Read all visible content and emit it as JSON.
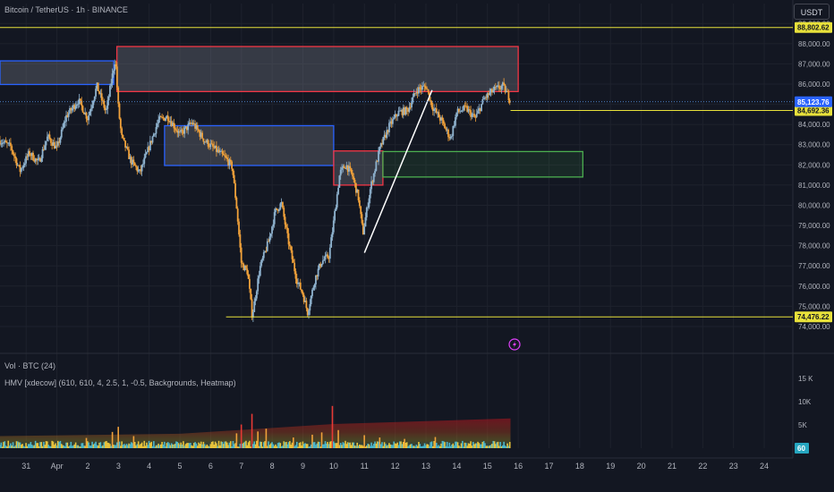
{
  "header": {
    "symbol": "Bitcoin / TetherUS · 1h · BINANCE",
    "currency_button": "USDT",
    "volume_indicator": "Vol · BTC (24)",
    "hmv_indicator": "HMV [xdecow] (610, 610, 4, 2.5, 1, -0.5, Backgrounds, Heatmap)"
  },
  "colors": {
    "background": "#131722",
    "up": "#8fb3cf",
    "down": "#f0a13a",
    "level_line": "#e8e13b",
    "supply_zone": "#f23645",
    "demand_zone": "#2962ff",
    "fvg_zone": "#4caf50",
    "trendline": "#ffffff"
  },
  "chart_data": [
    {
      "type": "candlestick",
      "title": "Bitcoin / TetherUS · 1h · BINANCE",
      "y_axis": {
        "ylim": [
          73600,
          89100
        ],
        "tick_labels": [
          "89,000.00",
          "88,000.00",
          "87,000.00",
          "86,000.00",
          "85,000.00",
          "84,000.00",
          "83,000.00",
          "82,000.00",
          "81,000.00",
          "80,000.00",
          "79,000.00",
          "78,000.00",
          "77,000.00",
          "76,000.00",
          "75,000.00",
          "74,000.00"
        ],
        "tick_values": [
          89000,
          88000,
          87000,
          86000,
          85000,
          84000,
          83000,
          82000,
          81000,
          80000,
          79000,
          78000,
          77000,
          76000,
          75000,
          74000
        ]
      },
      "x_axis": {
        "tick_labels": [
          "31",
          "Apr",
          "2",
          "3",
          "4",
          "5",
          "6",
          "7",
          "8",
          "9",
          "10",
          "11",
          "12",
          "13",
          "14",
          "15",
          "16",
          "17",
          "18",
          "19",
          "20",
          "21",
          "22",
          "23",
          "24"
        ],
        "tick_values": [
          0,
          1,
          2,
          3,
          4,
          5,
          6,
          7,
          8,
          9,
          10,
          11,
          12,
          13,
          14,
          15,
          16,
          17,
          18,
          19,
          20,
          21,
          22,
          23,
          24
        ],
        "range": [
          -0.85,
          24.9
        ]
      },
      "price_path": [
        [
          -0.85,
          83200
        ],
        [
          -0.5,
          82900
        ],
        [
          -0.2,
          81700
        ],
        [
          0.1,
          82600
        ],
        [
          0.4,
          82100
        ],
        [
          0.7,
          83400
        ],
        [
          1.0,
          82800
        ],
        [
          1.3,
          84400
        ],
        [
          1.7,
          85200
        ],
        [
          2.0,
          84300
        ],
        [
          2.3,
          85900
        ],
        [
          2.6,
          84600
        ],
        [
          2.9,
          87300
        ],
        [
          3.0,
          84800
        ],
        [
          3.1,
          83400
        ],
        [
          3.4,
          82200
        ],
        [
          3.7,
          81600
        ],
        [
          4.0,
          82900
        ],
        [
          4.3,
          84200
        ],
        [
          4.6,
          84400
        ],
        [
          5.0,
          83500
        ],
        [
          5.4,
          84100
        ],
        [
          5.8,
          83200
        ],
        [
          6.2,
          82700
        ],
        [
          6.5,
          82300
        ],
        [
          6.7,
          81900
        ],
        [
          6.85,
          79800
        ],
        [
          7.0,
          77100
        ],
        [
          7.2,
          76700
        ],
        [
          7.35,
          74500
        ],
        [
          7.6,
          76900
        ],
        [
          7.9,
          78300
        ],
        [
          8.1,
          79700
        ],
        [
          8.3,
          80100
        ],
        [
          8.5,
          78400
        ],
        [
          8.8,
          76300
        ],
        [
          9.0,
          75600
        ],
        [
          9.15,
          74700
        ],
        [
          9.4,
          76400
        ],
        [
          9.6,
          77200
        ],
        [
          9.85,
          77500
        ],
        [
          10.0,
          79200
        ],
        [
          10.2,
          81600
        ],
        [
          10.4,
          82000
        ],
        [
          10.6,
          81500
        ],
        [
          10.8,
          80400
        ],
        [
          10.95,
          78600
        ],
        [
          11.2,
          80900
        ],
        [
          11.5,
          82800
        ],
        [
          11.8,
          83900
        ],
        [
          12.1,
          84600
        ],
        [
          12.4,
          84700
        ],
        [
          12.7,
          85700
        ],
        [
          13.0,
          85900
        ],
        [
          13.2,
          84900
        ],
        [
          13.5,
          84200
        ],
        [
          13.8,
          83300
        ],
        [
          14.0,
          84600
        ],
        [
          14.3,
          84800
        ],
        [
          14.6,
          84300
        ],
        [
          14.9,
          85300
        ],
        [
          15.2,
          85700
        ],
        [
          15.5,
          85900
        ],
        [
          15.75,
          85200
        ]
      ],
      "zones": [
        {
          "kind": "demand",
          "x0": -0.85,
          "x1": 2.85,
          "y0": 85980,
          "y1": 87150
        },
        {
          "kind": "supply",
          "x0": 2.95,
          "x1": 16.0,
          "y0": 85630,
          "y1": 87860
        },
        {
          "kind": "demand",
          "x0": 4.5,
          "x1": 10.0,
          "y0": 81970,
          "y1": 83940
        },
        {
          "kind": "supply",
          "x0": 10.0,
          "x1": 11.6,
          "y0": 81000,
          "y1": 82690
        },
        {
          "kind": "fvg",
          "x0": 11.6,
          "x1": 18.1,
          "y0": 81400,
          "y1": 82660
        }
      ],
      "levels": [
        {
          "value": 88802.62,
          "label": "88,802.62",
          "x0": -0.85
        },
        {
          "value": 84692.36,
          "label": "84,692.36",
          "x0": 15.75
        },
        {
          "value": 74476.22,
          "label": "74,476.22",
          "x0": 6.5
        }
      ],
      "last_price": {
        "value": 85123.76,
        "label": "85,123.76"
      },
      "trendline": [
        [
          11.0,
          77650
        ],
        [
          13.2,
          85700
        ]
      ]
    },
    {
      "type": "bar",
      "title": "HMV [xdecow] (610, 610, 4, 2.5, 1, -0.5, Backgrounds, Heatmap)",
      "y_axis": {
        "ylim": [
          0,
          16000
        ],
        "tick_labels": [
          "15 K",
          "10K",
          "5K"
        ],
        "tick_values": [
          15000,
          10000,
          5000
        ]
      },
      "current_value_label": "60",
      "volume_spikes": [
        {
          "x": 1.95,
          "v": 2200
        },
        {
          "x": 2.8,
          "v": 3500
        },
        {
          "x": 3.0,
          "v": 4600
        },
        {
          "x": 3.5,
          "v": 2600
        },
        {
          "x": 6.85,
          "v": 3200
        },
        {
          "x": 7.0,
          "v": 5100
        },
        {
          "x": 7.35,
          "v": 7400
        },
        {
          "x": 7.55,
          "v": 3600
        },
        {
          "x": 7.8,
          "v": 4200
        },
        {
          "x": 8.7,
          "v": 2300
        },
        {
          "x": 9.3,
          "v": 2900
        },
        {
          "x": 9.6,
          "v": 3400
        },
        {
          "x": 9.95,
          "v": 9100
        },
        {
          "x": 10.15,
          "v": 3900
        },
        {
          "x": 11.0,
          "v": 2800
        },
        {
          "x": 11.5,
          "v": 2300
        },
        {
          "x": 12.3,
          "v": 2000
        },
        {
          "x": 13.3,
          "v": 2400
        },
        {
          "x": 15.75,
          "v": 2900
        }
      ]
    }
  ]
}
